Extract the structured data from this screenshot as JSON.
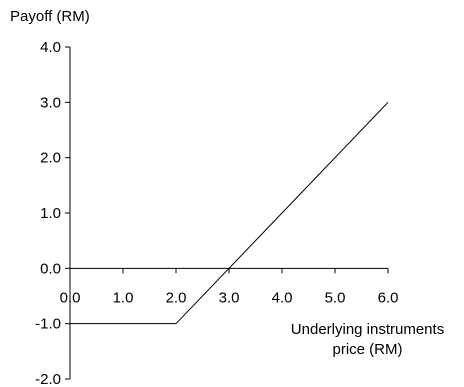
{
  "chart_data": {
    "type": "line",
    "ylabel": "Payoff (RM)",
    "xlabel_line1": "Underlying instruments",
    "xlabel_line2": "price (RM)",
    "xlim": [
      0,
      6
    ],
    "ylim": [
      -2,
      4
    ],
    "x_ticks": [
      "0.0",
      "1.0",
      "2.0",
      "3.0",
      "4.0",
      "5.0",
      "6.0"
    ],
    "y_ticks": [
      "4.0",
      "3.0",
      "2.0",
      "1.0",
      "0.0",
      "-1.0",
      "-2.0"
    ],
    "series": [
      {
        "points": [
          [
            0,
            -1
          ],
          [
            2,
            -1
          ],
          [
            6,
            3
          ]
        ]
      }
    ],
    "grid": false,
    "line_color": "#000000"
  }
}
